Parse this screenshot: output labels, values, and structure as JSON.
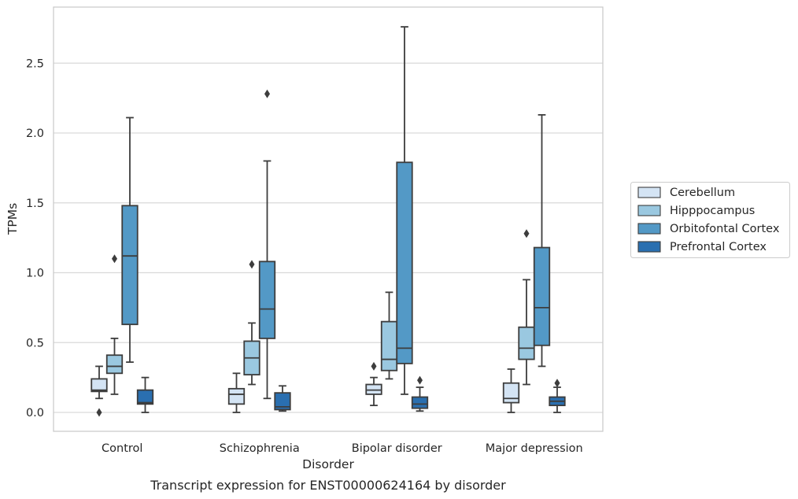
{
  "chart_data": {
    "type": "box",
    "caption": "Transcript expression for ENST00000624164 by disorder",
    "xlabel": "Disorder",
    "ylabel": "TPMs",
    "ylim": [
      -0.13,
      2.78
    ],
    "yticks": [
      0.0,
      0.5,
      1.0,
      1.5,
      2.0,
      2.5
    ],
    "ytick_labels": [
      "0.0",
      "0.5",
      "1.0",
      "1.5",
      "2.0",
      "2.5"
    ],
    "grid": "horizontal",
    "legend_position": "right",
    "categories": [
      "Control",
      "Schizophrenia",
      "Bipolar disorder",
      "Major depression"
    ],
    "series": [
      {
        "name": "Cerebellum",
        "color": "#d4e4f4",
        "boxes": [
          {
            "whislo": 0.1,
            "q1": 0.15,
            "med": 0.16,
            "q3": 0.24,
            "whishi": 0.33,
            "fliers": [
              0.0
            ]
          },
          {
            "whislo": 0.0,
            "q1": 0.06,
            "med": 0.13,
            "q3": 0.17,
            "whishi": 0.28,
            "fliers": []
          },
          {
            "whislo": 0.05,
            "q1": 0.13,
            "med": 0.16,
            "q3": 0.2,
            "whishi": 0.25,
            "fliers": [
              0.33
            ]
          },
          {
            "whislo": 0.0,
            "q1": 0.07,
            "med": 0.1,
            "q3": 0.21,
            "whishi": 0.31,
            "fliers": []
          }
        ]
      },
      {
        "name": "Hipppocampus",
        "color": "#9ac8e0",
        "boxes": [
          {
            "whislo": 0.13,
            "q1": 0.28,
            "med": 0.33,
            "q3": 0.41,
            "whishi": 0.53,
            "fliers": [
              1.1
            ]
          },
          {
            "whislo": 0.2,
            "q1": 0.27,
            "med": 0.39,
            "q3": 0.51,
            "whishi": 0.64,
            "fliers": [
              1.06
            ]
          },
          {
            "whislo": 0.24,
            "q1": 0.3,
            "med": 0.38,
            "q3": 0.65,
            "whishi": 0.86,
            "fliers": []
          },
          {
            "whislo": 0.2,
            "q1": 0.38,
            "med": 0.46,
            "q3": 0.61,
            "whishi": 0.95,
            "fliers": [
              1.28
            ]
          }
        ]
      },
      {
        "name": "Orbitofontal Cortex",
        "color": "#5399c6",
        "boxes": [
          {
            "whislo": 0.36,
            "q1": 0.63,
            "med": 1.12,
            "q3": 1.48,
            "whishi": 2.11,
            "fliers": []
          },
          {
            "whislo": 0.1,
            "q1": 0.53,
            "med": 0.74,
            "q3": 1.08,
            "whishi": 1.8,
            "fliers": [
              2.28
            ]
          },
          {
            "whislo": 0.13,
            "q1": 0.35,
            "med": 0.46,
            "q3": 1.79,
            "whishi": 2.76,
            "fliers": []
          },
          {
            "whislo": 0.33,
            "q1": 0.48,
            "med": 0.75,
            "q3": 1.18,
            "whishi": 2.13,
            "fliers": []
          }
        ]
      },
      {
        "name": "Prefrontal Cortex",
        "color": "#2a6fb0",
        "boxes": [
          {
            "whislo": 0.0,
            "q1": 0.06,
            "med": 0.07,
            "q3": 0.16,
            "whishi": 0.25,
            "fliers": []
          },
          {
            "whislo": 0.01,
            "q1": 0.02,
            "med": 0.04,
            "q3": 0.14,
            "whishi": 0.19,
            "fliers": []
          },
          {
            "whislo": 0.01,
            "q1": 0.03,
            "med": 0.06,
            "q3": 0.11,
            "whishi": 0.18,
            "fliers": [
              0.23
            ]
          },
          {
            "whislo": 0.0,
            "q1": 0.05,
            "med": 0.08,
            "q3": 0.11,
            "whishi": 0.18,
            "fliers": [
              0.21
            ]
          }
        ]
      }
    ]
  }
}
